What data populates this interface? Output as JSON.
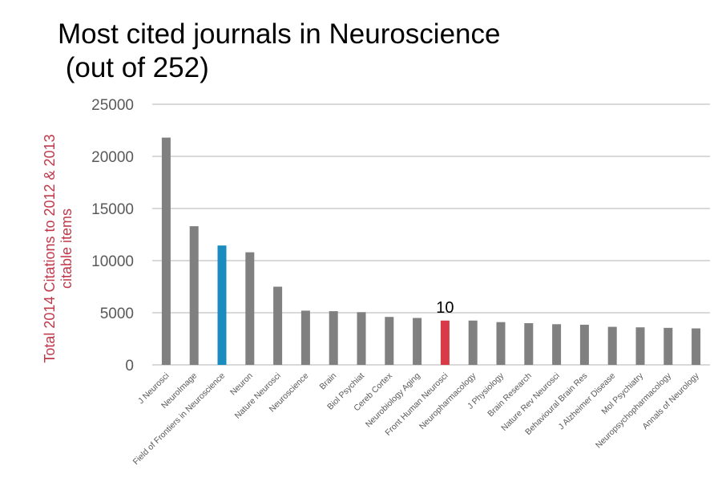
{
  "chart_data": {
    "type": "bar",
    "title_line1": "Most cited journals in Neuroscience",
    "title_line2": " (out of 252)",
    "ylabel_line1": "Total 2014 Citations to 2012 & 2013",
    "ylabel_line2": "citable items",
    "xlabel": "",
    "ylim": [
      0,
      25000
    ],
    "yticks": [
      0,
      5000,
      10000,
      15000,
      20000,
      25000
    ],
    "categories": [
      "J Neurosci",
      "NeuroImage",
      "Field of Frontiers in Neuroscience",
      "Neuron",
      "Nature Neurosci",
      "Neuroscience",
      "Brain",
      "Biol Psychiat",
      "Cereb Cortex",
      "Neurobiology Aging",
      "Front Human Neurosci",
      "Neuropharmacology",
      "J Physiology",
      "Brain Research",
      "Nature Rev Neurosci",
      "Behavioural Brain Res",
      "J Alzheimer Disease",
      "Mol Psychiatry",
      "Neuropsychopharmacology",
      "Annals of Neurology"
    ],
    "values": [
      21800,
      13300,
      11450,
      10800,
      7500,
      5200,
      5150,
      5050,
      4600,
      4500,
      4250,
      4250,
      4100,
      4000,
      3900,
      3850,
      3650,
      3600,
      3550,
      3500
    ],
    "colors": [
      "#808080",
      "#808080",
      "#1a8cbf",
      "#808080",
      "#808080",
      "#808080",
      "#808080",
      "#808080",
      "#808080",
      "#808080",
      "#d93a47",
      "#808080",
      "#808080",
      "#808080",
      "#808080",
      "#808080",
      "#808080",
      "#808080",
      "#808080",
      "#808080"
    ],
    "annotations": [
      {
        "category": "Front Human Neurosci",
        "text": "10"
      }
    ],
    "grid": true,
    "legend": "none"
  },
  "colors": {
    "grid": "#d9d9d9",
    "axis_text": "#595959",
    "ylabel": "#c0394b"
  }
}
